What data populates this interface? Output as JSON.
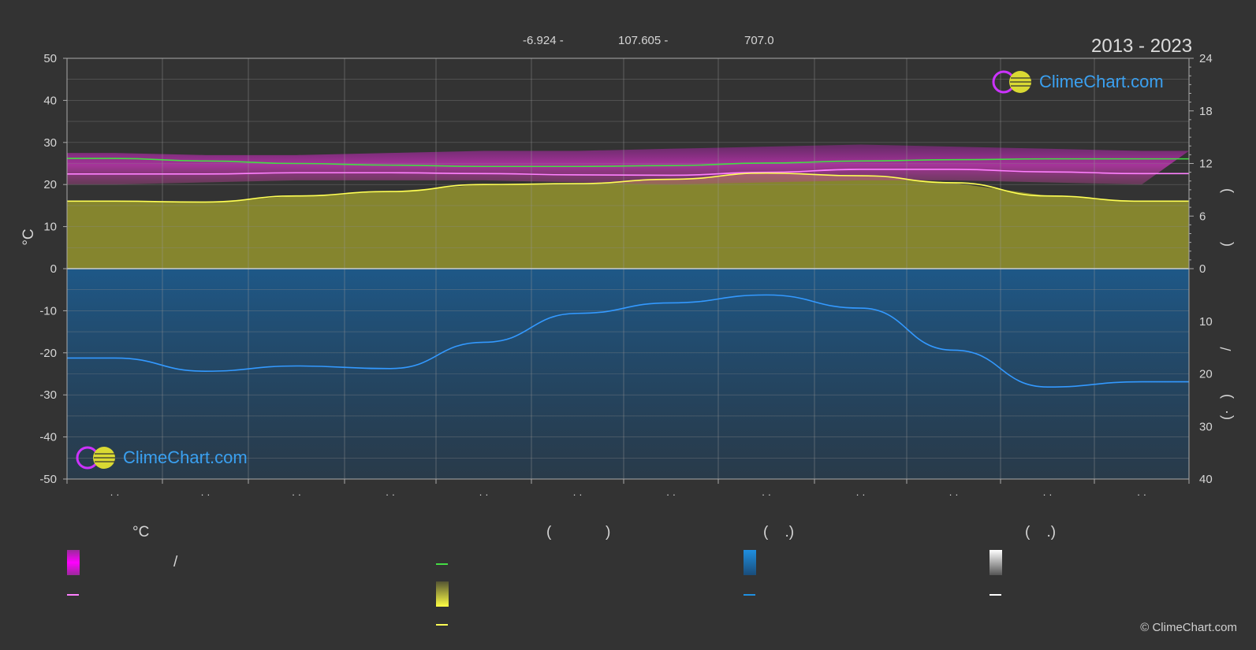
{
  "header": {
    "lat_text": "-6.924 -",
    "lon_text": "107.605 -",
    "elev_text": "707.0",
    "period": "2013 - 2023"
  },
  "chart_data": {
    "type": "area",
    "x_ticks": [
      "· ·",
      "· ·",
      "· ·",
      "· ·",
      "· ·",
      "· ·",
      "· ·",
      "· ·",
      "· ·",
      "· ·",
      "· ·",
      "· ·"
    ],
    "left_axis": {
      "label": "°C",
      "ylim": [
        -50,
        50
      ],
      "ticks": [
        50,
        40,
        30,
        20,
        10,
        0,
        -10,
        -20,
        -30,
        -40,
        -50
      ]
    },
    "right_axis_top": {
      "ylim": [
        0,
        24
      ],
      "ticks": [
        24,
        18,
        12,
        6,
        0
      ],
      "label_glyphs": [
        ")",
        "(",
        ""
      ]
    },
    "right_axis_bottom": {
      "ylim": [
        0,
        40
      ],
      "ticks": [
        10,
        20,
        30,
        40
      ],
      "label_glyphs": [
        "/",
        ")",
        "·",
        "("
      ]
    },
    "grid": true,
    "series": [
      {
        "name": "",
        "kind": "line",
        "axis": "left",
        "color": "#44dd44",
        "values": [
          26.2,
          25.6,
          25.0,
          24.6,
          24.3,
          24.3,
          24.5,
          25.1,
          25.6,
          25.9,
          26.1,
          26.1
        ]
      },
      {
        "name": "",
        "kind": "line",
        "axis": "left",
        "color": "#ff80ff",
        "values": [
          22.5,
          22.5,
          22.8,
          22.8,
          22.6,
          22.3,
          22.2,
          22.9,
          23.6,
          23.6,
          23.0,
          22.6
        ]
      },
      {
        "name": "",
        "kind": "line",
        "axis": "right_top",
        "color": "#ffff55",
        "values": [
          7.7,
          7.6,
          8.3,
          8.8,
          9.6,
          9.7,
          10.2,
          10.9,
          10.6,
          9.8,
          8.3,
          7.7
        ]
      },
      {
        "name": "",
        "kind": "line",
        "axis": "right_bottom",
        "color": "#3399ff",
        "values": [
          17,
          19.5,
          18.5,
          19,
          14,
          8.5,
          6.5,
          5,
          7.5,
          15.5,
          22.5,
          21.5
        ]
      }
    ]
  },
  "legend": {
    "col1_head": "°C",
    "col1_row1_text": "/",
    "col2_head": "(             )",
    "col3_head": "(    .)",
    "col4_head": "(    .)"
  },
  "colors": {
    "magenta": "#ff00ff",
    "green": "#44dd44",
    "pink": "#ff80ff",
    "yellow": "#ffff55",
    "blue": "#1f8fe0",
    "white": "#ffffff",
    "background": "#333333"
  },
  "brand": {
    "name": "ClimeChart.com",
    "copyright": "© ClimeChart.com"
  }
}
